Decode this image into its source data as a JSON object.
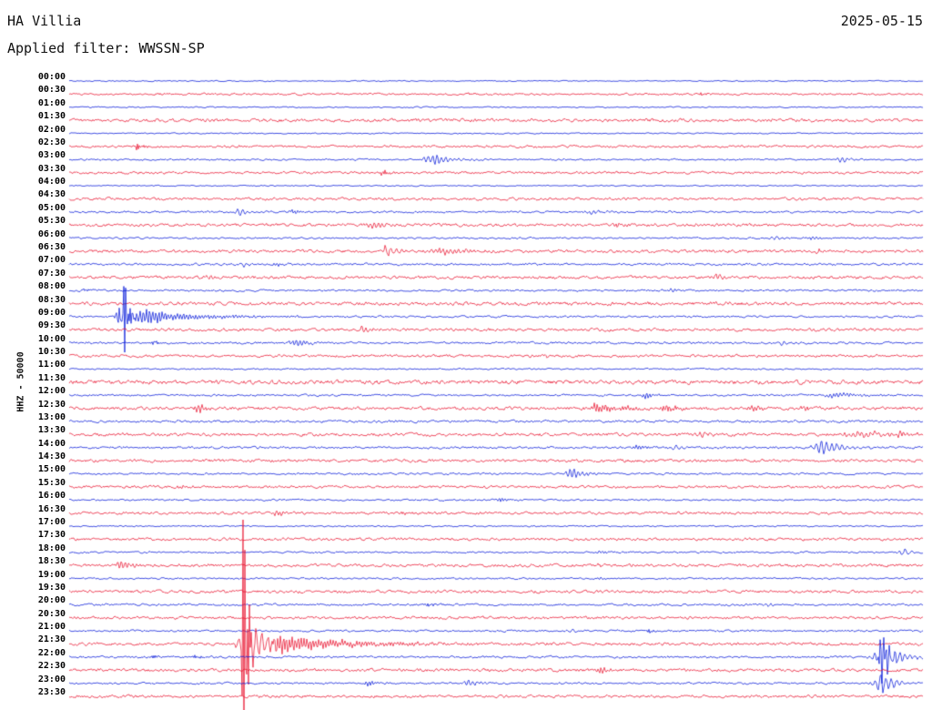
{
  "header": {
    "station": "HA Villia",
    "date": "2025-05-15",
    "filter_label": "Applied filter: WWSSN-SP"
  },
  "chart_data": {
    "type": "line",
    "subtype": "helicorder-seismogram",
    "title": "HA Villia",
    "date": "2025-05-15",
    "filter": "WWSSN-SP",
    "ylabel": "HHZ - 50000",
    "xlabel": "",
    "minutes_per_row": 30,
    "xlim_minutes": [
      0,
      30
    ],
    "legend": "none",
    "grid": false,
    "trace_colors": {
      "even_rows": "#0016d8",
      "odd_rows": "#e8112d"
    },
    "event_note": "events listed per row as [center_fraction_of_row, amplitude_px, rise_px, decay_px]",
    "rows": [
      {
        "time": "00:00",
        "noise": 0.45,
        "events": []
      },
      {
        "time": "00:30",
        "noise": 0.8,
        "events": [
          [
            0.1,
            1.6,
            2,
            4
          ],
          [
            0.47,
            1.8,
            2,
            5
          ],
          [
            0.74,
            2.0,
            2,
            5
          ]
        ]
      },
      {
        "time": "01:00",
        "noise": 0.5,
        "events": []
      },
      {
        "time": "01:30",
        "noise": 1.3,
        "events": []
      },
      {
        "time": "02:00",
        "noise": 0.5,
        "events": []
      },
      {
        "time": "02:30",
        "noise": 1.0,
        "events": [
          [
            0.079,
            4.5,
            2,
            6
          ]
        ]
      },
      {
        "time": "03:00",
        "noise": 0.7,
        "events": [
          [
            0.429,
            7,
            8,
            14
          ],
          [
            0.906,
            3.5,
            5,
            10
          ]
        ]
      },
      {
        "time": "03:30",
        "noise": 1.0,
        "events": [
          [
            0.367,
            3.5,
            2,
            6
          ]
        ]
      },
      {
        "time": "04:00",
        "noise": 0.5,
        "events": []
      },
      {
        "time": "04:30",
        "noise": 1.1,
        "events": []
      },
      {
        "time": "05:00",
        "noise": 0.8,
        "events": [
          [
            0.201,
            5,
            4,
            10
          ],
          [
            0.262,
            3,
            3,
            8
          ],
          [
            0.612,
            3,
            3,
            8
          ]
        ]
      },
      {
        "time": "05:30",
        "noise": 1.2,
        "events": [
          [
            0.356,
            6,
            3,
            8
          ],
          [
            0.64,
            2.5,
            3,
            8
          ]
        ]
      },
      {
        "time": "06:00",
        "noise": 0.7,
        "events": [
          [
            0.826,
            3,
            4,
            8
          ],
          [
            0.872,
            2.5,
            3,
            6
          ]
        ]
      },
      {
        "time": "06:30",
        "noise": 1.2,
        "events": [
          [
            0.372,
            8,
            3,
            10
          ],
          [
            0.44,
            4,
            10,
            25
          ],
          [
            0.88,
            2.5,
            4,
            10
          ]
        ]
      },
      {
        "time": "07:00",
        "noise": 0.9,
        "events": [
          [
            0.205,
            3,
            3,
            8
          ],
          [
            0.245,
            3,
            3,
            8
          ]
        ]
      },
      {
        "time": "07:30",
        "noise": 1.2,
        "events": [
          [
            0.165,
            3,
            3,
            8
          ],
          [
            0.76,
            4,
            6,
            12
          ]
        ]
      },
      {
        "time": "08:00",
        "noise": 0.8,
        "events": [
          [
            0.02,
            2.5,
            2,
            6
          ],
          [
            0.707,
            2,
            3,
            6
          ]
        ]
      },
      {
        "time": "08:30",
        "noise": 1.4,
        "events": []
      },
      {
        "time": "09:00",
        "noise": 0.8,
        "events": [
          [
            0.064,
            55,
            2,
            4
          ],
          [
            0.064,
            20,
            5,
            14
          ],
          [
            0.082,
            8,
            10,
            60
          ]
        ]
      },
      {
        "time": "09:30",
        "noise": 1.2,
        "events": [
          [
            0.345,
            3.5,
            4,
            10
          ]
        ]
      },
      {
        "time": "10:00",
        "noise": 0.9,
        "events": [
          [
            0.1,
            3,
            2,
            6
          ],
          [
            0.268,
            4,
            6,
            14
          ],
          [
            0.836,
            2.5,
            3,
            8
          ]
        ]
      },
      {
        "time": "10:30",
        "noise": 1.1,
        "events": [
          [
            0.558,
            2,
            3,
            6
          ]
        ]
      },
      {
        "time": "11:00",
        "noise": 0.6,
        "events": []
      },
      {
        "time": "11:30",
        "noise": 1.6,
        "events": []
      },
      {
        "time": "12:00",
        "noise": 0.8,
        "events": [
          [
            0.677,
            4,
            4,
            10
          ],
          [
            0.9,
            3.5,
            10,
            20
          ]
        ]
      },
      {
        "time": "12:30",
        "noise": 1.3,
        "events": [
          [
            0.152,
            5,
            3,
            8
          ],
          [
            0.62,
            5,
            8,
            30
          ],
          [
            0.7,
            3.5,
            6,
            15
          ],
          [
            0.8,
            4,
            4,
            10
          ],
          [
            0.86,
            3,
            3,
            8
          ]
        ]
      },
      {
        "time": "13:00",
        "noise": 1.0,
        "events": []
      },
      {
        "time": "13:30",
        "noise": 1.3,
        "events": [
          [
            0.74,
            3,
            3,
            8
          ],
          [
            0.93,
            3,
            15,
            40
          ],
          [
            0.975,
            3.5,
            4,
            8
          ]
        ]
      },
      {
        "time": "14:00",
        "noise": 0.9,
        "events": [
          [
            0.665,
            3,
            3,
            8
          ],
          [
            0.71,
            3,
            3,
            8
          ],
          [
            0.885,
            9,
            8,
            20
          ]
        ]
      },
      {
        "time": "14:30",
        "noise": 1.2,
        "events": []
      },
      {
        "time": "15:00",
        "noise": 0.8,
        "events": [
          [
            0.59,
            6,
            6,
            14
          ]
        ]
      },
      {
        "time": "15:30",
        "noise": 1.1,
        "events": [
          [
            0.132,
            2.5,
            3,
            6
          ]
        ]
      },
      {
        "time": "16:00",
        "noise": 0.7,
        "events": [
          [
            0.505,
            2.5,
            3,
            8
          ]
        ]
      },
      {
        "time": "16:30",
        "noise": 1.1,
        "events": [
          [
            0.244,
            4,
            3,
            8
          ],
          [
            0.39,
            2,
            2,
            5
          ]
        ]
      },
      {
        "time": "17:00",
        "noise": 0.6,
        "events": []
      },
      {
        "time": "17:30",
        "noise": 1.1,
        "events": [
          [
            0.558,
            2,
            3,
            6
          ]
        ]
      },
      {
        "time": "18:00",
        "noise": 0.7,
        "events": [
          [
            0.623,
            2.5,
            3,
            6
          ],
          [
            0.978,
            4,
            4,
            8
          ]
        ]
      },
      {
        "time": "18:30",
        "noise": 1.2,
        "events": [
          [
            0.063,
            4.5,
            6,
            12
          ],
          [
            0.62,
            2,
            2,
            5
          ]
        ]
      },
      {
        "time": "19:00",
        "noise": 0.7,
        "events": [
          [
            0.623,
            2,
            3,
            6
          ]
        ]
      },
      {
        "time": "19:30",
        "noise": 1.2,
        "events": []
      },
      {
        "time": "20:00",
        "noise": 0.9,
        "events": [
          [
            0.42,
            2.5,
            2,
            6
          ],
          [
            0.82,
            2.5,
            3,
            6
          ]
        ]
      },
      {
        "time": "20:30",
        "noise": 1.1,
        "events": []
      },
      {
        "time": "21:00",
        "noise": 0.8,
        "events": [
          [
            0.59,
            2.5,
            3,
            6
          ],
          [
            0.68,
            2,
            2,
            5
          ]
        ]
      },
      {
        "time": "21:30",
        "noise": 1.2,
        "events": [
          [
            0.205,
            260,
            1.5,
            3
          ],
          [
            0.212,
            26,
            8,
            18
          ],
          [
            0.25,
            10,
            10,
            70
          ]
        ]
      },
      {
        "time": "22:00",
        "noise": 0.9,
        "events": [
          [
            0.953,
            34,
            3,
            6
          ],
          [
            0.956,
            14,
            8,
            18
          ],
          [
            0.1,
            2.5,
            2,
            5
          ],
          [
            0.148,
            2.5,
            2,
            5
          ]
        ]
      },
      {
        "time": "22:30",
        "noise": 1.2,
        "events": [
          [
            0.623,
            3,
            3,
            8
          ]
        ]
      },
      {
        "time": "23:00",
        "noise": 0.8,
        "events": [
          [
            0.351,
            3,
            3,
            8
          ],
          [
            0.468,
            4,
            4,
            10
          ],
          [
            0.953,
            12,
            6,
            14
          ]
        ]
      },
      {
        "time": "23:30",
        "noise": 1.1,
        "events": []
      }
    ]
  }
}
